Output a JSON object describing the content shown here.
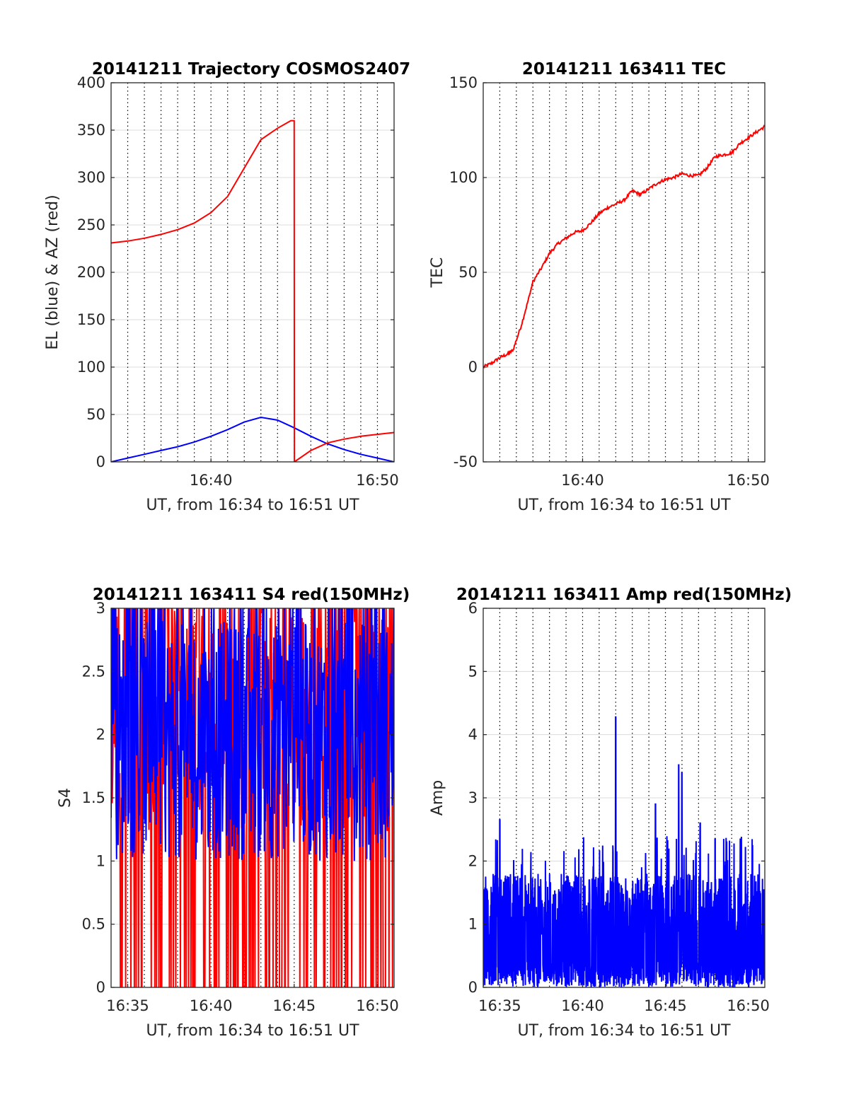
{
  "colors": {
    "el": "#0000ff",
    "az": "#ff0000",
    "tec": "#ff0000",
    "s4_red": "#ff0000",
    "s4_blue": "#0000ff",
    "amp": "#0000ff",
    "dotted_grid": "#000000",
    "h_grid": "#dcdcdc"
  },
  "chart_data": [
    {
      "type": "line",
      "title": "20141211 Trajectory COSMOS2407",
      "xlabel": "UT, from 16:34 to 16:51 UT",
      "ylabel": "EL (blue) & AZ (red)",
      "xlim_minutes": [
        34,
        51
      ],
      "ylim": [
        0,
        400
      ],
      "xtick_labels": [
        "16:40",
        "16:50"
      ],
      "xtick_values": [
        40,
        50
      ],
      "yticks": [
        0,
        50,
        100,
        150,
        200,
        250,
        300,
        350,
        400
      ],
      "ytick_labels": [
        "0",
        "50",
        "100",
        "150",
        "200",
        "250",
        "300",
        "350",
        "400"
      ],
      "grid": "dotted vertical lines every 1 minute, light horizontal lines at y ticks",
      "series": [
        {
          "color": "blue",
          "x_minutes": [
            34,
            35,
            36,
            37,
            38,
            39,
            40,
            41,
            42,
            43,
            44,
            45,
            46,
            47,
            48,
            49,
            50,
            51
          ],
          "values": [
            0,
            4,
            8,
            12,
            16,
            21,
            27,
            34,
            42,
            47,
            44,
            36,
            27,
            19,
            13,
            8,
            4,
            0
          ]
        },
        {
          "color": "red",
          "x_minutes": [
            34,
            35,
            36,
            37,
            38,
            39,
            40,
            41,
            42,
            43,
            44,
            44.8,
            45.0,
            45.01,
            46,
            47,
            48,
            49,
            50,
            51
          ],
          "values": [
            231,
            233,
            236,
            240,
            245,
            252,
            263,
            280,
            310,
            340,
            352,
            360,
            360,
            0,
            12,
            20,
            24,
            27,
            29,
            31
          ]
        }
      ]
    },
    {
      "type": "line",
      "title": "20141211 163411 TEC",
      "xlabel": "UT, from 16:34 to 16:51 UT",
      "ylabel": "TEC",
      "xlim_minutes": [
        34,
        51
      ],
      "ylim": [
        -50,
        150
      ],
      "xtick_labels": [
        "16:40",
        "16:50"
      ],
      "xtick_values": [
        40,
        50
      ],
      "yticks": [
        -50,
        0,
        50,
        100,
        150
      ],
      "ytick_labels": [
        "-50",
        "0",
        "50",
        "100",
        "150"
      ],
      "series": [
        {
          "color": "red",
          "x_minutes": [
            34,
            34.5,
            35,
            35.5,
            35.8,
            36.3,
            36.8,
            37,
            37.5,
            38,
            38.5,
            39,
            39.5,
            40,
            40.5,
            41,
            41.5,
            42,
            42.5,
            43,
            43.5,
            44,
            44.5,
            45,
            45.5,
            46,
            46.5,
            47,
            47.5,
            48,
            48.5,
            49,
            49.5,
            50,
            50.5,
            51
          ],
          "values": [
            0,
            2,
            5,
            7,
            9,
            22,
            38,
            45,
            52,
            60,
            65,
            68,
            71,
            72,
            76,
            81,
            84,
            86,
            88,
            93,
            91,
            94,
            97,
            99,
            100,
            102,
            101,
            101,
            105,
            111,
            112,
            113,
            118,
            121,
            124,
            127
          ]
        }
      ]
    },
    {
      "type": "line",
      "title": "20141211 163411 S4 red(150MHz)",
      "xlabel": "UT, from 16:34 to 16:51 UT",
      "ylabel": "S4",
      "xlim_minutes": [
        34,
        51
      ],
      "ylim": [
        0,
        3
      ],
      "xtick_labels": [
        "16:35",
        "16:40",
        "16:45",
        "16:50"
      ],
      "xtick_values": [
        35,
        40,
        45,
        50
      ],
      "yticks": [
        0,
        0.5,
        1,
        1.5,
        2,
        2.5,
        3
      ],
      "ytick_labels": [
        "0",
        "0.5",
        "1",
        "1.5",
        "2",
        "2.5",
        "3"
      ],
      "series": [
        {
          "color": "red",
          "values_range": [
            0,
            3
          ]
        },
        {
          "color": "blue",
          "values_range": [
            0.95,
            3
          ]
        }
      ]
    },
    {
      "type": "line",
      "title": "20141211 163411 Amp red(150MHz)",
      "xlabel": "UT, from 16:34 to 16:51 UT",
      "ylabel": "Amp",
      "xlim_minutes": [
        34,
        51
      ],
      "ylim": [
        0,
        6
      ],
      "xtick_labels": [
        "16:35",
        "16:40",
        "16:45",
        "16:50"
      ],
      "xtick_values": [
        35,
        40,
        45,
        50
      ],
      "yticks": [
        0,
        1,
        2,
        3,
        4,
        5,
        6
      ],
      "ytick_labels": [
        "0",
        "1",
        "2",
        "3",
        "4",
        "5",
        "6"
      ],
      "series": [
        {
          "color": "blue",
          "peaks": [
            {
              "x_minutes": 42.0,
              "value": 4.28
            },
            {
              "x_minutes": 45.8,
              "value": 3.52
            },
            {
              "x_minutes": 46.0,
              "value": 3.4
            },
            {
              "x_minutes": 44.4,
              "value": 2.9
            },
            {
              "x_minutes": 35.0,
              "value": 2.65
            },
            {
              "x_minutes": 47.1,
              "value": 2.6
            },
            {
              "x_minutes": 48.0,
              "value": 2.35
            }
          ],
          "baseline_range": [
            0,
            1.9
          ]
        }
      ]
    }
  ]
}
